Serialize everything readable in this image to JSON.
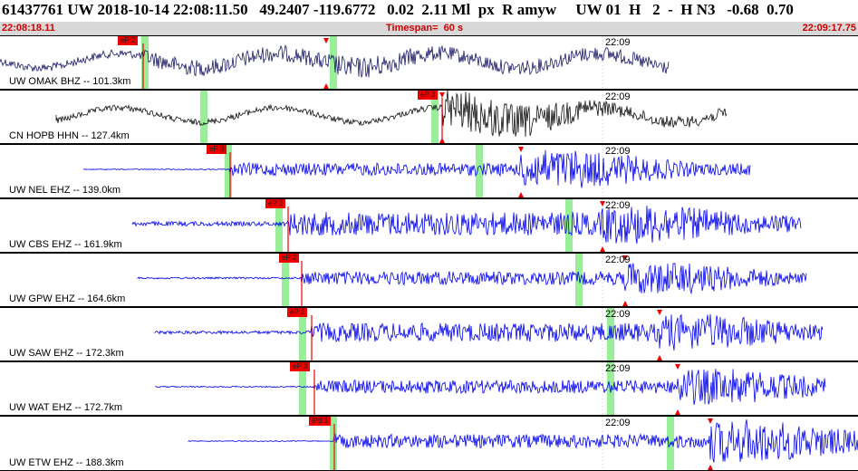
{
  "header": {
    "title": "61437761 UW 2018-10-14 22:08:11.50   49.2407 -119.6772   0.02  2.11 Ml  px  R amyw     UW 01  H   2  -  H N3   -0.68  0.70",
    "start_time": "22:08:18.11",
    "timespan": "Timespan=  60 s",
    "end_time": "22:09:17.75"
  },
  "colors": {
    "trace_blue": "#0000ee",
    "trace_navy": "#1a1a66",
    "trace_black": "#111111",
    "pick_red": "#ee0000",
    "window_green": "#99ee99",
    "subbar_gray": "#d8d8d8"
  },
  "traces": [
    {
      "label": "UW OMAK BHZ -- 101.3km",
      "time_mark": "22:09",
      "pick": "eP 2",
      "color": "navy"
    },
    {
      "label": "CN HOPB HHN -- 127.4km",
      "time_mark": "22:09",
      "pick": "eP 3",
      "color": "black"
    },
    {
      "label": "UW NEL EHZ -- 139.0km",
      "time_mark": "22:09",
      "pick": "eP 3",
      "color": "blue"
    },
    {
      "label": "UW CBS EHZ -- 161.9km",
      "time_mark": "22:09",
      "pick": "eP 2",
      "color": "blue"
    },
    {
      "label": "UW GPW EHZ -- 164.6km",
      "time_mark": "22:09",
      "pick": "eP 2",
      "color": "blue"
    },
    {
      "label": "UW SAW EHZ -- 172.3km",
      "time_mark": "22:09",
      "pick": "eP 2",
      "color": "blue"
    },
    {
      "label": "UW WAT EHZ -- 172.7km",
      "time_mark": "22:09",
      "pick": "eP 3",
      "color": "blue"
    },
    {
      "label": "UW ETW EHZ -- 188.3km",
      "time_mark": "22:09",
      "pick": "iPd 1",
      "color": "blue"
    }
  ]
}
